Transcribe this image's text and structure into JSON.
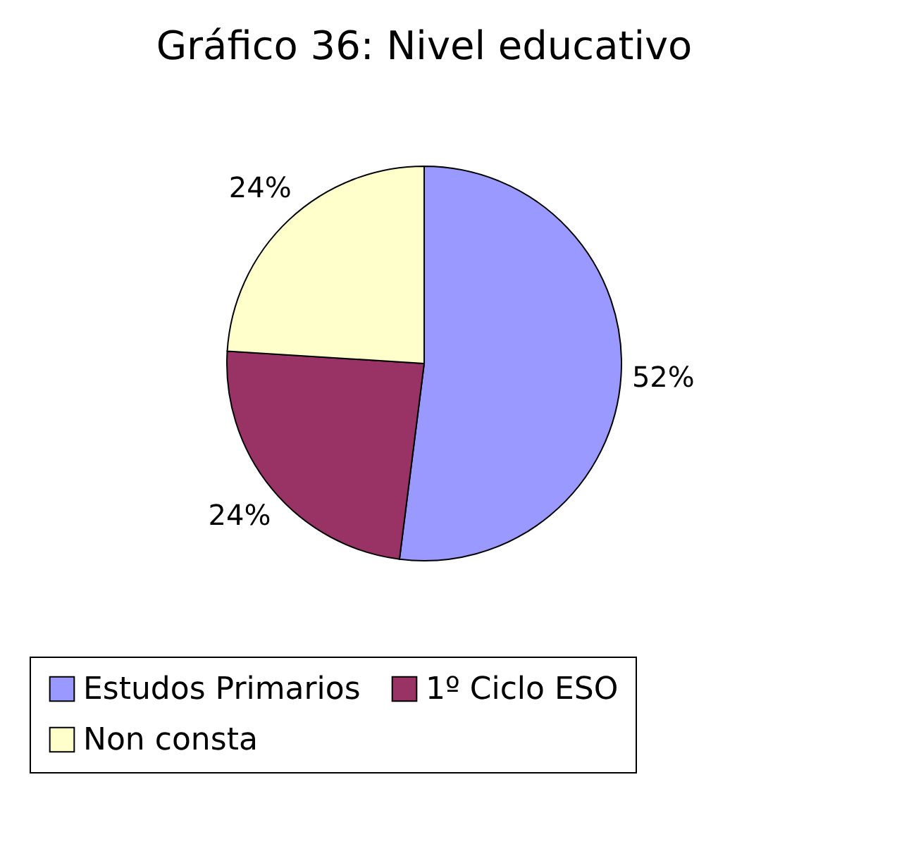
{
  "chart_data": {
    "type": "pie",
    "title": "Gráfico 36: Nivel educativo",
    "categories": [
      "Estudos Primarios",
      "1º Ciclo ESO",
      "Non consta"
    ],
    "values": [
      52,
      24,
      24
    ],
    "colors": [
      "#9999ff",
      "#993366",
      "#ffffcc"
    ],
    "value_labels": [
      "52%",
      "24%",
      "24%"
    ],
    "legend": "bottom"
  }
}
